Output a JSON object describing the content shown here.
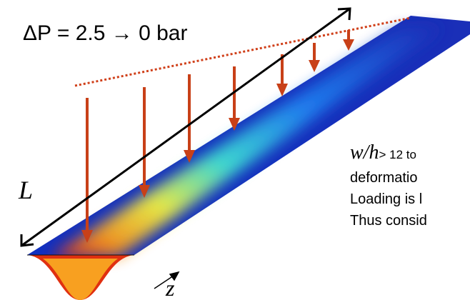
{
  "title": "ΔP = 2.5 → 0 bar",
  "labels": {
    "length": "L",
    "axis": "z"
  },
  "notes": {
    "ratio_symbol": "w/h",
    "line1": "> 12 to",
    "line2": "deformatio",
    "line3": "Loading is l",
    "line4": "Thus consid"
  }
}
